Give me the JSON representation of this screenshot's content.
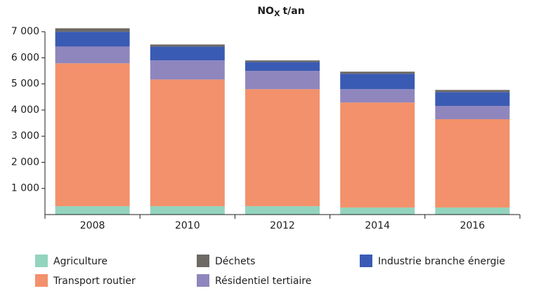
{
  "chart_data": {
    "type": "stacked_bar",
    "title": {
      "main": "NO",
      "sub": "X",
      "unit": "t/an"
    },
    "categories": [
      "2008",
      "2010",
      "2012",
      "2014",
      "2016"
    ],
    "series": [
      {
        "name": "Agriculture",
        "color": "#93d4bf",
        "values": [
          320,
          320,
          320,
          270,
          270
        ]
      },
      {
        "name": "Transport routier",
        "color": "#f2916b",
        "values": [
          5470,
          4850,
          4480,
          4020,
          3380
        ]
      },
      {
        "name": "Résidentiel tertiaire",
        "color": "#8f86be",
        "values": [
          640,
          730,
          700,
          510,
          510
        ]
      },
      {
        "name": "Industrie branche énergie",
        "color": "#3a5bb3",
        "values": [
          570,
          530,
          340,
          590,
          530
        ]
      },
      {
        "name": "Déchets",
        "color": "#6d6964",
        "values": [
          130,
          80,
          60,
          80,
          80
        ]
      }
    ],
    "ylim": [
      0,
      7300
    ],
    "yticks": [
      {
        "value": 1000,
        "label": "1 000"
      },
      {
        "value": 2000,
        "label": "2 000"
      },
      {
        "value": 3000,
        "label": "3 000"
      },
      {
        "value": 4000,
        "label": "4 000"
      },
      {
        "value": 5000,
        "label": "5 000"
      },
      {
        "value": 6000,
        "label": "6 000"
      },
      {
        "value": 7000,
        "label": "7 000"
      }
    ]
  }
}
